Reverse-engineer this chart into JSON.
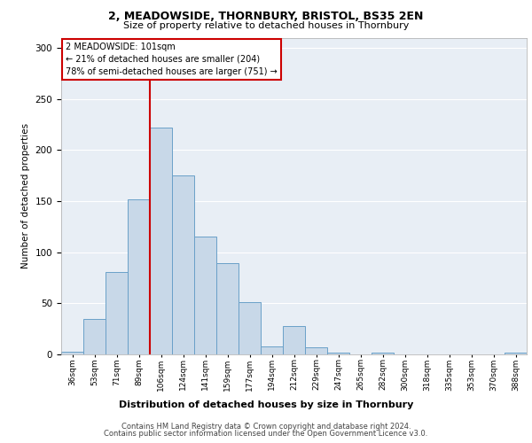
{
  "title1": "2, MEADOWSIDE, THORNBURY, BRISTOL, BS35 2EN",
  "title2": "Size of property relative to detached houses in Thornbury",
  "xlabel": "Distribution of detached houses by size in Thornbury",
  "ylabel": "Number of detached properties",
  "footer1": "Contains HM Land Registry data © Crown copyright and database right 2024.",
  "footer2": "Contains public sector information licensed under the Open Government Licence v3.0.",
  "annotation_title": "2 MEADOWSIDE: 101sqm",
  "annotation_line1": "← 21% of detached houses are smaller (204)",
  "annotation_line2": "78% of semi-detached houses are larger (751) →",
  "bin_labels": [
    "36sqm",
    "53sqm",
    "71sqm",
    "89sqm",
    "106sqm",
    "124sqm",
    "141sqm",
    "159sqm",
    "177sqm",
    "194sqm",
    "212sqm",
    "229sqm",
    "247sqm",
    "265sqm",
    "282sqm",
    "300sqm",
    "318sqm",
    "335sqm",
    "353sqm",
    "370sqm",
    "388sqm"
  ],
  "counts": [
    3,
    35,
    81,
    152,
    222,
    175,
    115,
    89,
    51,
    8,
    28,
    7,
    2,
    0,
    2,
    0,
    0,
    0,
    0,
    0,
    2
  ],
  "bar_color": "#c8d8e8",
  "bar_edge_color": "#6aa0c8",
  "vline_color": "#cc0000",
  "bg_color": "#e8eef5",
  "grid_color": "#ffffff",
  "annotation_box_color": "#ffffff",
  "annotation_box_edge": "#cc0000",
  "ylim": [
    0,
    310
  ],
  "yticks": [
    0,
    50,
    100,
    150,
    200,
    250,
    300
  ]
}
